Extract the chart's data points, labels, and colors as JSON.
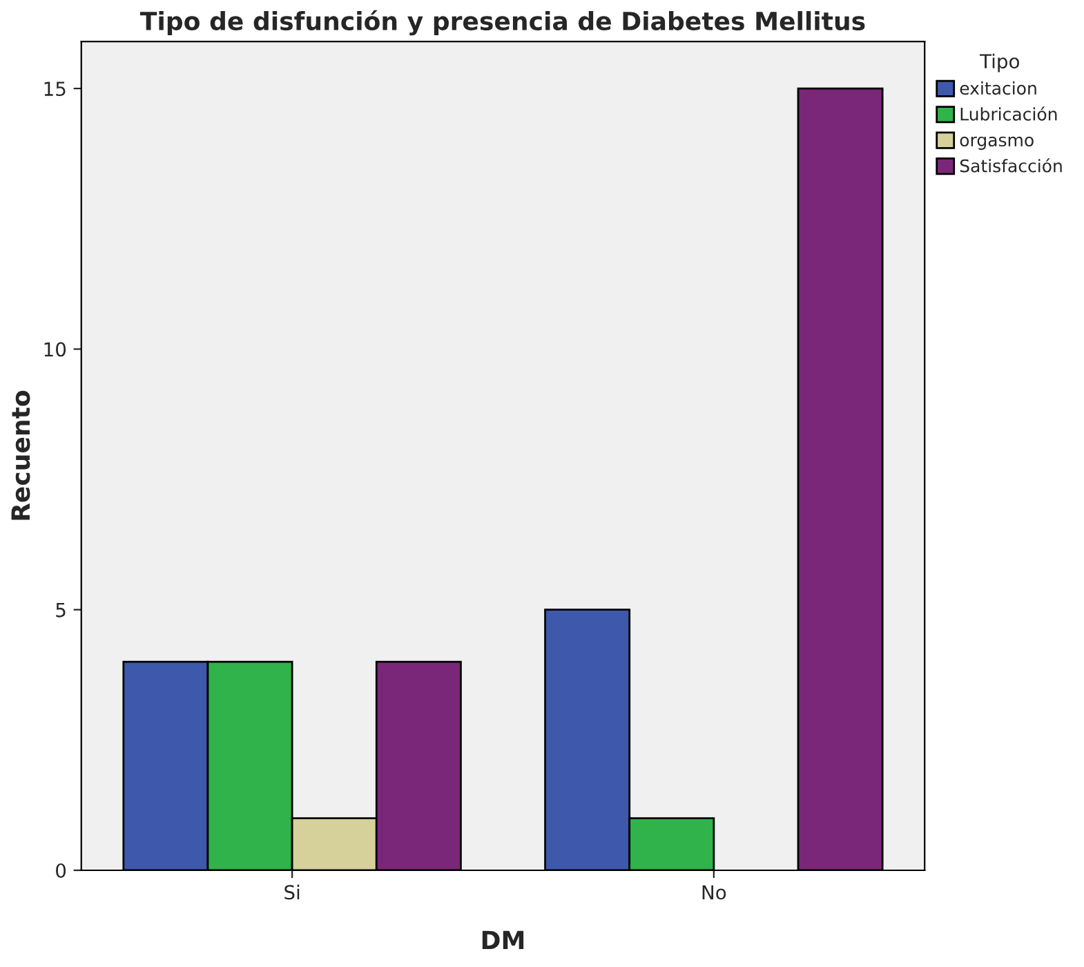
{
  "chart_data": {
    "type": "bar",
    "title": "Tipo de disfunción y presencia de Diabetes Mellitus",
    "xlabel": "DM",
    "ylabel": "Recuento",
    "legend_title": "Tipo",
    "categories": [
      "Si",
      "No"
    ],
    "series": [
      {
        "name": "exitacion",
        "color": "#3e58ac",
        "values": [
          4,
          5
        ]
      },
      {
        "name": "Lubricación",
        "color": "#2fb34a",
        "values": [
          4,
          1
        ]
      },
      {
        "name": "orgasmo",
        "color": "#d6d09a",
        "values": [
          1,
          null
        ]
      },
      {
        "name": "Satisfacción",
        "color": "#7b2779",
        "values": [
          4,
          15
        ]
      }
    ],
    "ylim": [
      0,
      15.9
    ],
    "yticks": [
      0,
      5,
      10,
      15
    ],
    "grid": false,
    "legend": "top right"
  }
}
